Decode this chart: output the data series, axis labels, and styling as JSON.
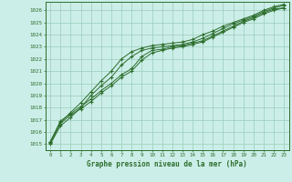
{
  "title": "Graphe pression niveau de la mer (hPa)",
  "bg_color": "#cceee8",
  "grid_color": "#99ccbb",
  "line_color": "#2d6e2d",
  "marker_color": "#2d6e2d",
  "x_ticks": [
    0,
    1,
    2,
    3,
    4,
    5,
    6,
    7,
    8,
    9,
    10,
    11,
    12,
    13,
    14,
    15,
    16,
    17,
    18,
    19,
    20,
    21,
    22,
    23
  ],
  "y_min": 1014.5,
  "y_max": 1026.7,
  "y_ticks": [
    1015,
    1016,
    1017,
    1018,
    1019,
    1020,
    1021,
    1022,
    1023,
    1024,
    1025,
    1026
  ],
  "series": [
    [
      1015.2,
      1016.9,
      1017.5,
      1018.1,
      1018.7,
      1019.4,
      1020.0,
      1020.7,
      1021.2,
      1022.2,
      1022.7,
      1022.8,
      1023.0,
      1023.1,
      1023.3,
      1023.5,
      1023.9,
      1024.3,
      1024.7,
      1025.1,
      1025.4,
      1025.8,
      1026.1,
      1026.2
    ],
    [
      1015.1,
      1016.7,
      1017.4,
      1017.9,
      1018.5,
      1019.2,
      1019.8,
      1020.5,
      1021.0,
      1021.9,
      1022.5,
      1022.7,
      1022.9,
      1023.0,
      1023.2,
      1023.4,
      1023.8,
      1024.2,
      1024.6,
      1025.0,
      1025.3,
      1025.7,
      1026.0,
      1026.2
    ],
    [
      1015.0,
      1016.5,
      1017.2,
      1018.0,
      1019.0,
      1019.8,
      1020.5,
      1021.5,
      1022.2,
      1022.7,
      1022.9,
      1023.0,
      1023.1,
      1023.2,
      1023.4,
      1023.7,
      1024.1,
      1024.5,
      1024.9,
      1025.2,
      1025.5,
      1025.9,
      1026.2,
      1026.4
    ],
    [
      1015.2,
      1016.8,
      1017.6,
      1018.4,
      1019.3,
      1020.2,
      1021.0,
      1022.0,
      1022.6,
      1022.9,
      1023.1,
      1023.2,
      1023.3,
      1023.4,
      1023.6,
      1024.0,
      1024.3,
      1024.7,
      1025.0,
      1025.3,
      1025.6,
      1026.0,
      1026.3,
      1026.5
    ]
  ]
}
